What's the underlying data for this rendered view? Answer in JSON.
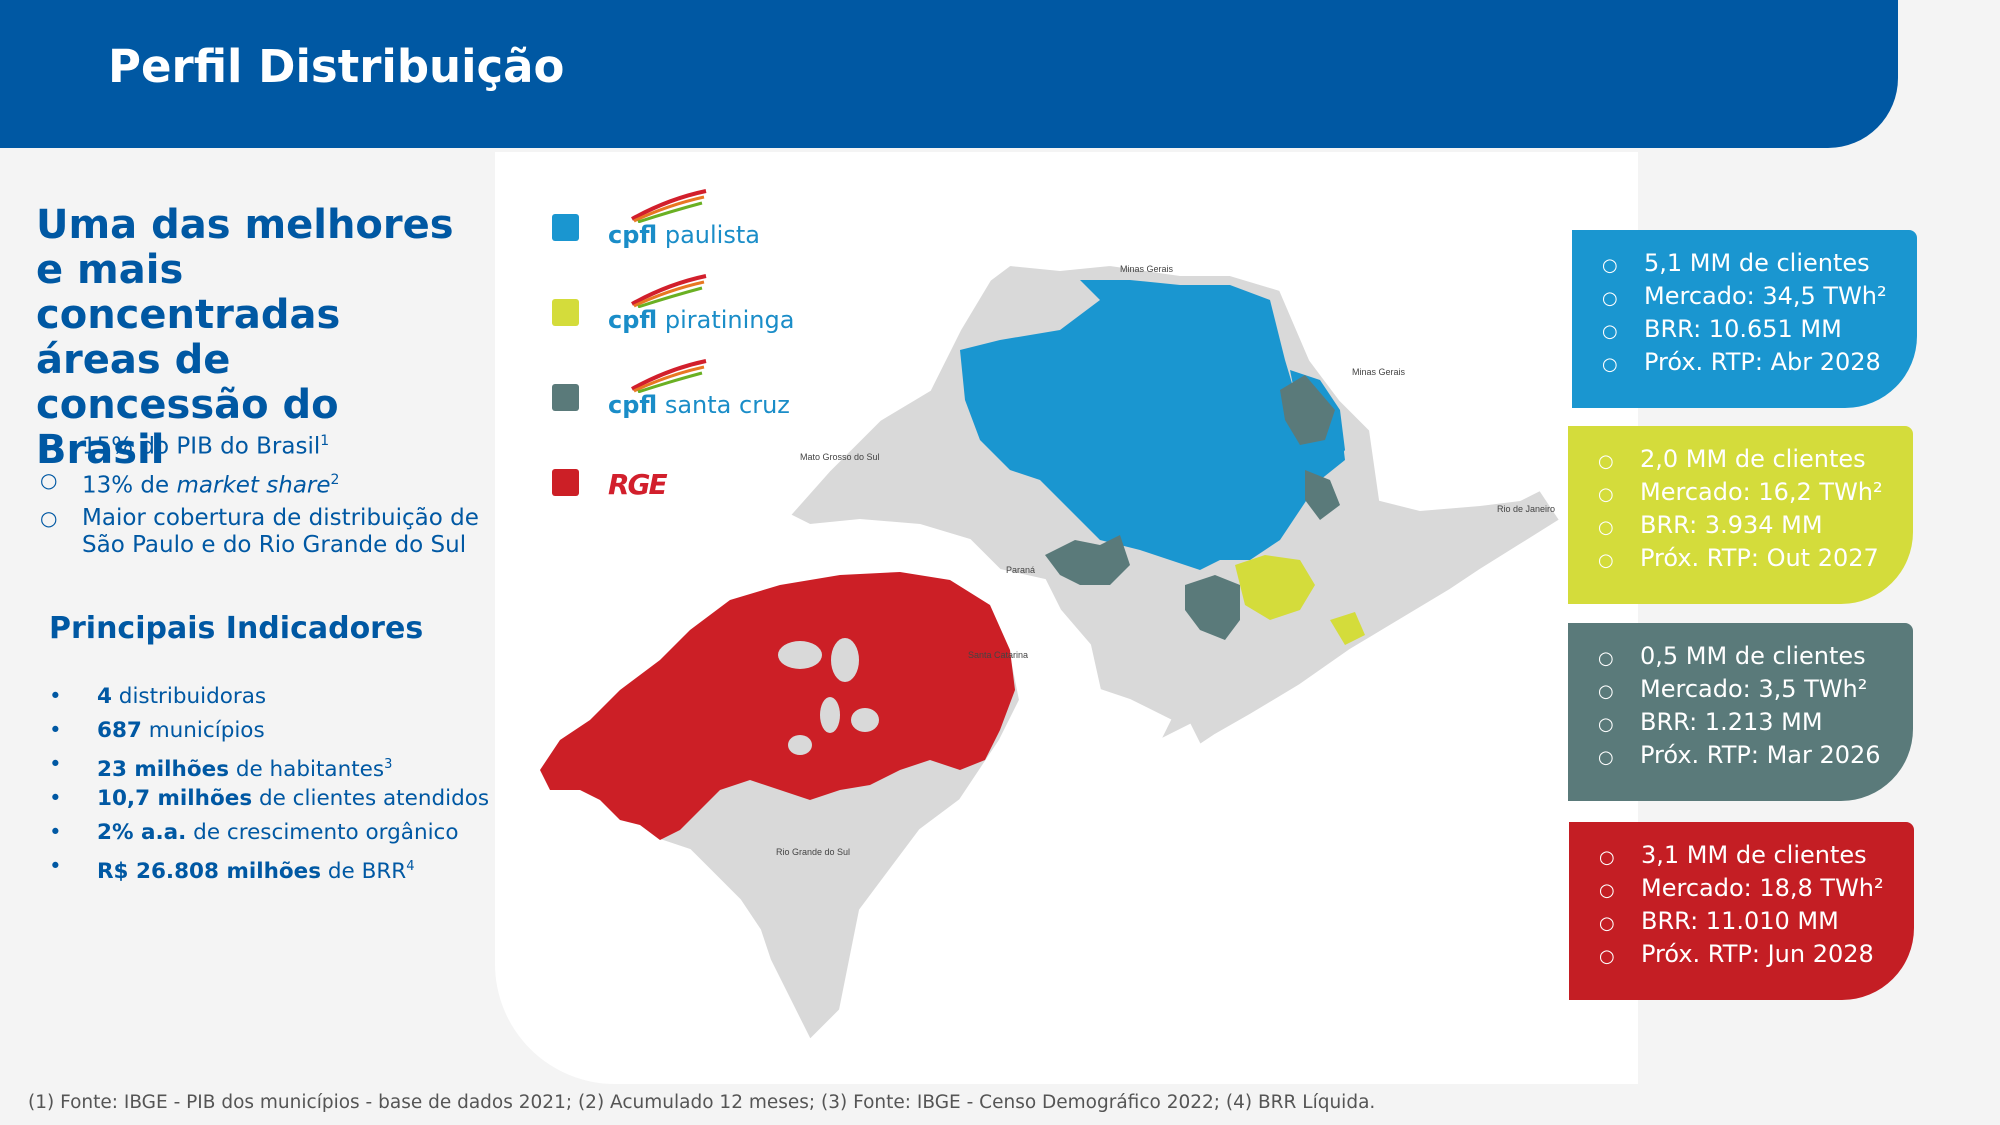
{
  "header": {
    "title": "Perfil Distribuição"
  },
  "headline": "Uma das melhores e mais concentradas áreas de concessão do Brasil",
  "highlights": [
    {
      "text": "15% do PIB do Brasil",
      "sup": "1"
    },
    {
      "text_pre": "13% de ",
      "text_em": "market share",
      "sup": "2"
    },
    {
      "text": "Maior cobertura de distribuição de São Paulo e do Rio Grande do Sul"
    }
  ],
  "indicators": {
    "title": "Principais Indicadores",
    "items": [
      {
        "bold": "4",
        "rest": " distribuidoras",
        "sup": ""
      },
      {
        "bold": "687",
        "rest": " municípios",
        "sup": ""
      },
      {
        "bold": "23 milhões",
        "rest": " de habitantes",
        "sup": "3"
      },
      {
        "bold": "10,7 milhões",
        "rest": " de clientes atendidos",
        "sup": ""
      },
      {
        "bold": "2% a.a.",
        "rest": " de crescimento orgânico",
        "sup": ""
      },
      {
        "bold": "R$ 26.808 milhões",
        "rest": " de BRR",
        "sup": "4"
      }
    ]
  },
  "legend": [
    {
      "brand": "cpfl",
      "name": "paulista",
      "color": "#1a96d0",
      "icon": "cpfl-logo"
    },
    {
      "brand": "cpfl",
      "name": "piratininga",
      "color": "#d4dc3b",
      "icon": "cpfl-logo"
    },
    {
      "brand": "cpfl",
      "name": "santa cruz",
      "color": "#5a7a7a",
      "icon": "cpfl-logo"
    },
    {
      "brand": "RGE",
      "name": "",
      "color": "#cc1f26",
      "icon": "rge-logo"
    }
  ],
  "map_labels": {
    "mg_top": "Minas Gerais",
    "mg_right": "Minas Gerais",
    "ms": "Mato Grosso do Sul",
    "pr": "Paraná",
    "rj": "Rio de Janeiro",
    "sc": "Santa Catarina",
    "rs": "Rio Grande do Sul"
  },
  "cards": [
    {
      "color": "#1a96d0",
      "lines": [
        "5,1 MM de clientes",
        "Mercado: 34,5 TWh²",
        "BRR: 10.651 MM",
        "Próx. RTP: Abr 2028"
      ]
    },
    {
      "color": "#d4dc3b",
      "lines": [
        "2,0 MM de clientes",
        "Mercado: 16,2 TWh²",
        "BRR: 3.934 MM",
        "Próx. RTP: Out 2027"
      ]
    },
    {
      "color": "#5a7a7a",
      "lines": [
        "0,5 MM de clientes",
        "Mercado: 3,5 TWh²",
        "BRR: 1.213 MM",
        "Próx. RTP: Mar 2026"
      ]
    },
    {
      "color": "#c41e24",
      "lines": [
        "3,1 MM de clientes",
        "Mercado: 18,8 TWh²",
        "BRR: 11.010 MM",
        "Próx. RTP: Jun 2028"
      ]
    }
  ],
  "footnote": "(1) Fonte: IBGE - PIB dos municípios - base de dados 2021; (2) Acumulado 12 meses; (3) Fonte: IBGE - Censo Demográfico 2022; (4) BRR Líquida."
}
